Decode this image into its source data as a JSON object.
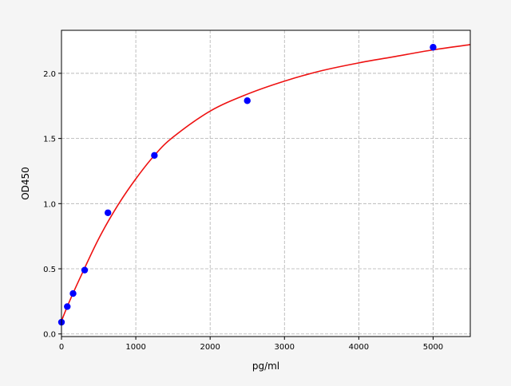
{
  "chart_data": {
    "type": "scatter",
    "title": "",
    "xlabel": "pg/ml",
    "ylabel": "OD450",
    "xlim": [
      0,
      5500
    ],
    "ylim": [
      -0.02,
      2.33
    ],
    "xticks": [
      0,
      1000,
      2000,
      3000,
      4000,
      5000
    ],
    "yticks": [
      0.0,
      0.5,
      1.0,
      1.5,
      2.0
    ],
    "xtick_labels": [
      "0",
      "1000",
      "2000",
      "3000",
      "4000",
      "5000"
    ],
    "ytick_labels": [
      "0.0",
      "0.5",
      "1.0",
      "1.5",
      "2.0"
    ],
    "grid": true,
    "series": [
      {
        "kind": "points",
        "color": "#0000ff",
        "x": [
          0,
          78,
          156,
          312,
          625,
          1250,
          2500,
          5000
        ],
        "y": [
          0.09,
          0.21,
          0.31,
          0.49,
          0.93,
          1.37,
          1.79,
          2.2
        ]
      },
      {
        "kind": "fitted-curve",
        "color": "#ee1111",
        "x": [
          0,
          100,
          250,
          500,
          750,
          1000,
          1250,
          1500,
          2000,
          2500,
          3000,
          3500,
          4000,
          4500,
          5000,
          5500
        ],
        "y": [
          0.1,
          0.24,
          0.43,
          0.73,
          0.98,
          1.19,
          1.37,
          1.51,
          1.71,
          1.84,
          1.94,
          2.02,
          2.08,
          2.13,
          2.18,
          2.22
        ]
      }
    ]
  }
}
